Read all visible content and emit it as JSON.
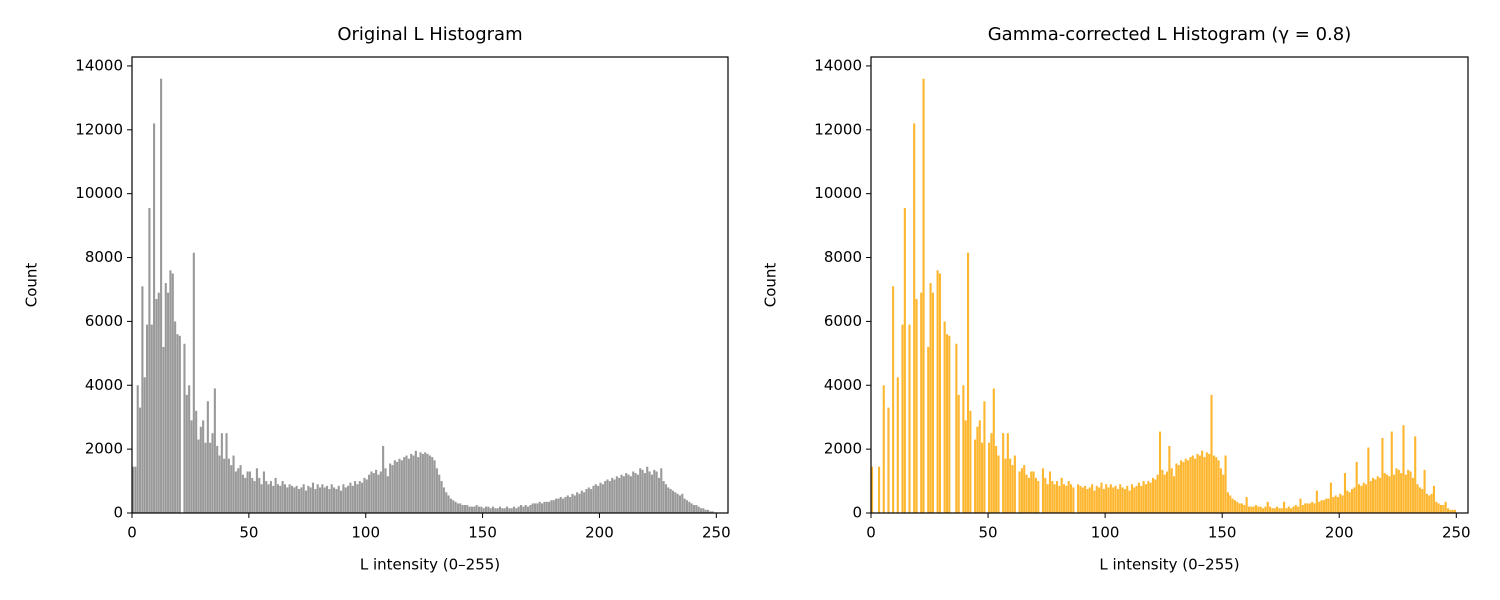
{
  "chart_data": [
    {
      "type": "histogram",
      "title": "Original L Histogram",
      "x_label": "L intensity (0–255)",
      "y_label": "Count",
      "color": "#999999",
      "xlim": [
        0,
        255
      ],
      "ylim": [
        0,
        14280
      ],
      "xticks": [
        0,
        50,
        100,
        150,
        200,
        250
      ],
      "yticks": [
        0,
        2000,
        4000,
        6000,
        8000,
        10000,
        12000,
        14000
      ],
      "bins": [
        0,
        1,
        2,
        3,
        4,
        5,
        6,
        7,
        8,
        9,
        10,
        11,
        12,
        13,
        14,
        15,
        16,
        17,
        18,
        19,
        20,
        21,
        22,
        23,
        24,
        25,
        26,
        27,
        28,
        29,
        30,
        31,
        32,
        33,
        34,
        35,
        36,
        37,
        38,
        39,
        40,
        41,
        42,
        43,
        44,
        45,
        46,
        47,
        48,
        49,
        50,
        51,
        52,
        53,
        54,
        55,
        56,
        57,
        58,
        59,
        60,
        61,
        62,
        63,
        64,
        65,
        66,
        67,
        68,
        69,
        70,
        71,
        72,
        73,
        74,
        75,
        76,
        77,
        78,
        79,
        80,
        81,
        82,
        83,
        84,
        85,
        86,
        87,
        88,
        89,
        90,
        91,
        92,
        93,
        94,
        95,
        96,
        97,
        98,
        99,
        100,
        101,
        102,
        103,
        104,
        105,
        106,
        107,
        108,
        109,
        110,
        111,
        112,
        113,
        114,
        115,
        116,
        117,
        118,
        119,
        120,
        121,
        122,
        123,
        124,
        125,
        126,
        127,
        128,
        129,
        130,
        131,
        132,
        133,
        134,
        135,
        136,
        137,
        138,
        139,
        140,
        141,
        142,
        143,
        144,
        145,
        146,
        147,
        148,
        149,
        150,
        151,
        152,
        153,
        154,
        155,
        156,
        157,
        158,
        159,
        160,
        161,
        162,
        163,
        164,
        165,
        166,
        167,
        168,
        169,
        170,
        171,
        172,
        173,
        174,
        175,
        176,
        177,
        178,
        179,
        180,
        181,
        182,
        183,
        184,
        185,
        186,
        187,
        188,
        189,
        190,
        191,
        192,
        193,
        194,
        195,
        196,
        197,
        198,
        199,
        200,
        201,
        202,
        203,
        204,
        205,
        206,
        207,
        208,
        209,
        210,
        211,
        212,
        213,
        214,
        215,
        216,
        217,
        218,
        219,
        220,
        221,
        222,
        223,
        224,
        225,
        226,
        227,
        228,
        229,
        230,
        231,
        232,
        233,
        234,
        235,
        236,
        237,
        238,
        239,
        240,
        241,
        242,
        243,
        244,
        245,
        246,
        247,
        248,
        249,
        250,
        251,
        252,
        253,
        254,
        255,
        256
      ],
      "values": [
        1450,
        1450,
        4000,
        3300,
        7100,
        4250,
        5900,
        9550,
        5900,
        12200,
        6700,
        6900,
        13600,
        5200,
        7200,
        6900,
        7600,
        7500,
        6000,
        5600,
        5550,
        0,
        5300,
        3700,
        4000,
        2900,
        8150,
        3200,
        2300,
        2700,
        2900,
        2200,
        3500,
        2200,
        2500,
        3900,
        2100,
        1800,
        2500,
        1700,
        2500,
        1700,
        1500,
        1800,
        1300,
        1400,
        1500,
        1200,
        1100,
        1300,
        1300,
        1100,
        1000,
        1400,
        1100,
        900,
        1300,
        1000,
        900,
        1000,
        850,
        1100,
        900,
        850,
        1000,
        900,
        800,
        900,
        850,
        800,
        850,
        750,
        800,
        900,
        700,
        850,
        800,
        950,
        750,
        900,
        800,
        900,
        800,
        850,
        750,
        900,
        800,
        750,
        850,
        700,
        900,
        800,
        850,
        950,
        850,
        1000,
        900,
        1000,
        950,
        1100,
        1050,
        1200,
        1300,
        1250,
        1350,
        1200,
        1300,
        2100,
        1400,
        1150,
        1550,
        1500,
        1650,
        1600,
        1700,
        1650,
        1750,
        1800,
        1700,
        1850,
        1800,
        1950,
        1750,
        1900,
        1850,
        1900,
        1850,
        1800,
        1750,
        1650,
        1400,
        1200,
        1000,
        800,
        650,
        550,
        450,
        400,
        350,
        300,
        300,
        250,
        250,
        250,
        200,
        200,
        200,
        250,
        200,
        200,
        150,
        200,
        200,
        150,
        200,
        150,
        150,
        200,
        150,
        150,
        200,
        150,
        150,
        200,
        150,
        200,
        250,
        200,
        250,
        200,
        250,
        300,
        300,
        300,
        350,
        300,
        350,
        350,
        350,
        400,
        400,
        450,
        450,
        500,
        450,
        500,
        550,
        500,
        600,
        550,
        650,
        600,
        700,
        650,
        750,
        800,
        750,
        850,
        900,
        850,
        950,
        900,
        1000,
        1050,
        1000,
        1100,
        1050,
        1150,
        1100,
        1200,
        1150,
        1250,
        1200,
        1150,
        1300,
        1250,
        1200,
        1400,
        1350,
        1250,
        1450,
        1300,
        1200,
        1350,
        1300,
        1100,
        1400,
        1000,
        900,
        800,
        750,
        700,
        650,
        600,
        550,
        600,
        450,
        400,
        350,
        300,
        250,
        250,
        200,
        150,
        150,
        100,
        100,
        50,
        50,
        0,
        0,
        0,
        0,
        0,
        0,
        0
      ]
    },
    {
      "type": "histogram",
      "title": "Gamma-corrected L Histogram (γ = 0.8)",
      "x_label": "L intensity (0–255)",
      "y_label": "Count",
      "color": "#fdb62f",
      "xlim": [
        0,
        255
      ],
      "ylim": [
        0,
        14280
      ],
      "xticks": [
        0,
        50,
        100,
        150,
        200,
        250
      ],
      "yticks": [
        0,
        2000,
        4000,
        6000,
        8000,
        10000,
        12000,
        14000
      ],
      "bins": [
        0,
        1,
        2,
        3,
        4,
        5,
        6,
        7,
        8,
        9,
        10,
        11,
        12,
        13,
        14,
        15,
        16,
        17,
        18,
        19,
        20,
        21,
        22,
        23,
        24,
        25,
        26,
        27,
        28,
        29,
        30,
        31,
        32,
        33,
        34,
        35,
        36,
        37,
        38,
        39,
        40,
        41,
        42,
        43,
        44,
        45,
        46,
        47,
        48,
        49,
        50,
        51,
        52,
        53,
        54,
        55,
        56,
        57,
        58,
        59,
        60,
        61,
        62,
        63,
        64,
        65,
        66,
        67,
        68,
        69,
        70,
        71,
        72,
        73,
        74,
        75,
        76,
        77,
        78,
        79,
        80,
        81,
        82,
        83,
        84,
        85,
        86,
        87,
        88,
        89,
        90,
        91,
        92,
        93,
        94,
        95,
        96,
        97,
        98,
        99,
        100,
        101,
        102,
        103,
        104,
        105,
        106,
        107,
        108,
        109,
        110,
        111,
        112,
        113,
        114,
        115,
        116,
        117,
        118,
        119,
        120,
        121,
        122,
        123,
        124,
        125,
        126,
        127,
        128,
        129,
        130,
        131,
        132,
        133,
        134,
        135,
        136,
        137,
        138,
        139,
        140,
        141,
        142,
        143,
        144,
        145,
        146,
        147,
        148,
        149,
        150,
        151,
        152,
        153,
        154,
        155,
        156,
        157,
        158,
        159,
        160,
        161,
        162,
        163,
        164,
        165,
        166,
        167,
        168,
        169,
        170,
        171,
        172,
        173,
        174,
        175,
        176,
        177,
        178,
        179,
        180,
        181,
        182,
        183,
        184,
        185,
        186,
        187,
        188,
        189,
        190,
        191,
        192,
        193,
        194,
        195,
        196,
        197,
        198,
        199,
        200,
        201,
        202,
        203,
        204,
        205,
        206,
        207,
        208,
        209,
        210,
        211,
        212,
        213,
        214,
        215,
        216,
        217,
        218,
        219,
        220,
        221,
        222,
        223,
        224,
        225,
        226,
        227,
        228,
        229,
        230,
        231,
        232,
        233,
        234,
        235,
        236,
        237,
        238,
        239,
        240,
        241,
        242,
        243,
        244,
        245,
        246,
        247,
        248,
        249,
        250,
        251,
        252,
        253,
        254,
        255,
        256
      ],
      "values": [
        1450,
        0,
        0,
        1450,
        0,
        4000,
        0,
        3300,
        0,
        7100,
        0,
        4250,
        0,
        5900,
        9550,
        0,
        5900,
        0,
        12200,
        6700,
        0,
        6900,
        13600,
        0,
        5200,
        7200,
        6900,
        0,
        7600,
        7500,
        0,
        6000,
        5600,
        5550,
        0,
        0,
        5300,
        3700,
        0,
        4000,
        2900,
        8150,
        3200,
        0,
        2300,
        2700,
        2900,
        2200,
        3500,
        0,
        2200,
        2500,
        3900,
        2100,
        1800,
        0,
        2500,
        1700,
        2500,
        1700,
        1500,
        1800,
        0,
        1300,
        1400,
        1500,
        1200,
        1100,
        1300,
        1300,
        1100,
        1000,
        0,
        1400,
        1100,
        900,
        1300,
        1000,
        900,
        1000,
        850,
        1100,
        900,
        850,
        1000,
        900,
        800,
        0,
        900,
        850,
        800,
        850,
        750,
        800,
        900,
        700,
        850,
        800,
        950,
        750,
        900,
        800,
        900,
        800,
        850,
        750,
        900,
        800,
        750,
        850,
        700,
        900,
        800,
        850,
        950,
        850,
        1000,
        900,
        1000,
        950,
        1100,
        1050,
        1200,
        2550,
        1350,
        1200,
        1300,
        2100,
        1400,
        1150,
        1550,
        1500,
        1650,
        1600,
        1700,
        1650,
        1750,
        1800,
        1700,
        1850,
        1800,
        1950,
        1750,
        1900,
        1850,
        3700,
        1800,
        1750,
        1650,
        1400,
        1200,
        1800,
        650,
        550,
        450,
        400,
        350,
        300,
        300,
        250,
        500,
        200,
        200,
        200,
        250,
        200,
        200,
        150,
        200,
        350,
        200,
        150,
        150,
        200,
        150,
        150,
        350,
        150,
        200,
        150,
        200,
        250,
        200,
        450,
        250,
        300,
        300,
        300,
        350,
        300,
        700,
        350,
        400,
        400,
        450,
        450,
        950,
        500,
        550,
        500,
        600,
        550,
        1250,
        700,
        650,
        750,
        800,
        1600,
        900,
        850,
        950,
        900,
        2050,
        1000,
        1100,
        1050,
        1150,
        1100,
        2350,
        1250,
        1200,
        1150,
        2550,
        1200,
        1400,
        1350,
        1250,
        2750,
        1200,
        1350,
        1300,
        1100,
        2400,
        900,
        800,
        750,
        1350,
        600,
        550,
        600,
        850,
        350,
        300,
        250,
        250,
        350,
        150,
        100,
        100,
        100,
        0,
        0,
        0,
        0,
        0,
        0
      ]
    }
  ]
}
